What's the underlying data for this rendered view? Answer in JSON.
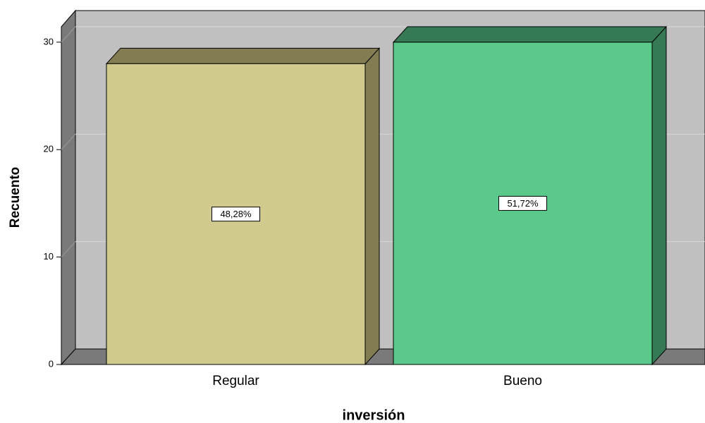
{
  "chart_data": {
    "type": "bar3d",
    "x_label": "inversión",
    "y_label": "Recuento",
    "categories": [
      "Regular",
      "Bueno"
    ],
    "values": [
      28,
      30
    ],
    "data_labels": [
      "48,28%",
      "51,72%"
    ],
    "colors": [
      "#d0ca8e",
      "#5bc98b"
    ],
    "side_colors": [
      "#837c52",
      "#357a55"
    ],
    "ylim": [
      0,
      31.5
    ],
    "yticks": [
      0,
      10,
      20,
      30
    ],
    "grid": true
  }
}
